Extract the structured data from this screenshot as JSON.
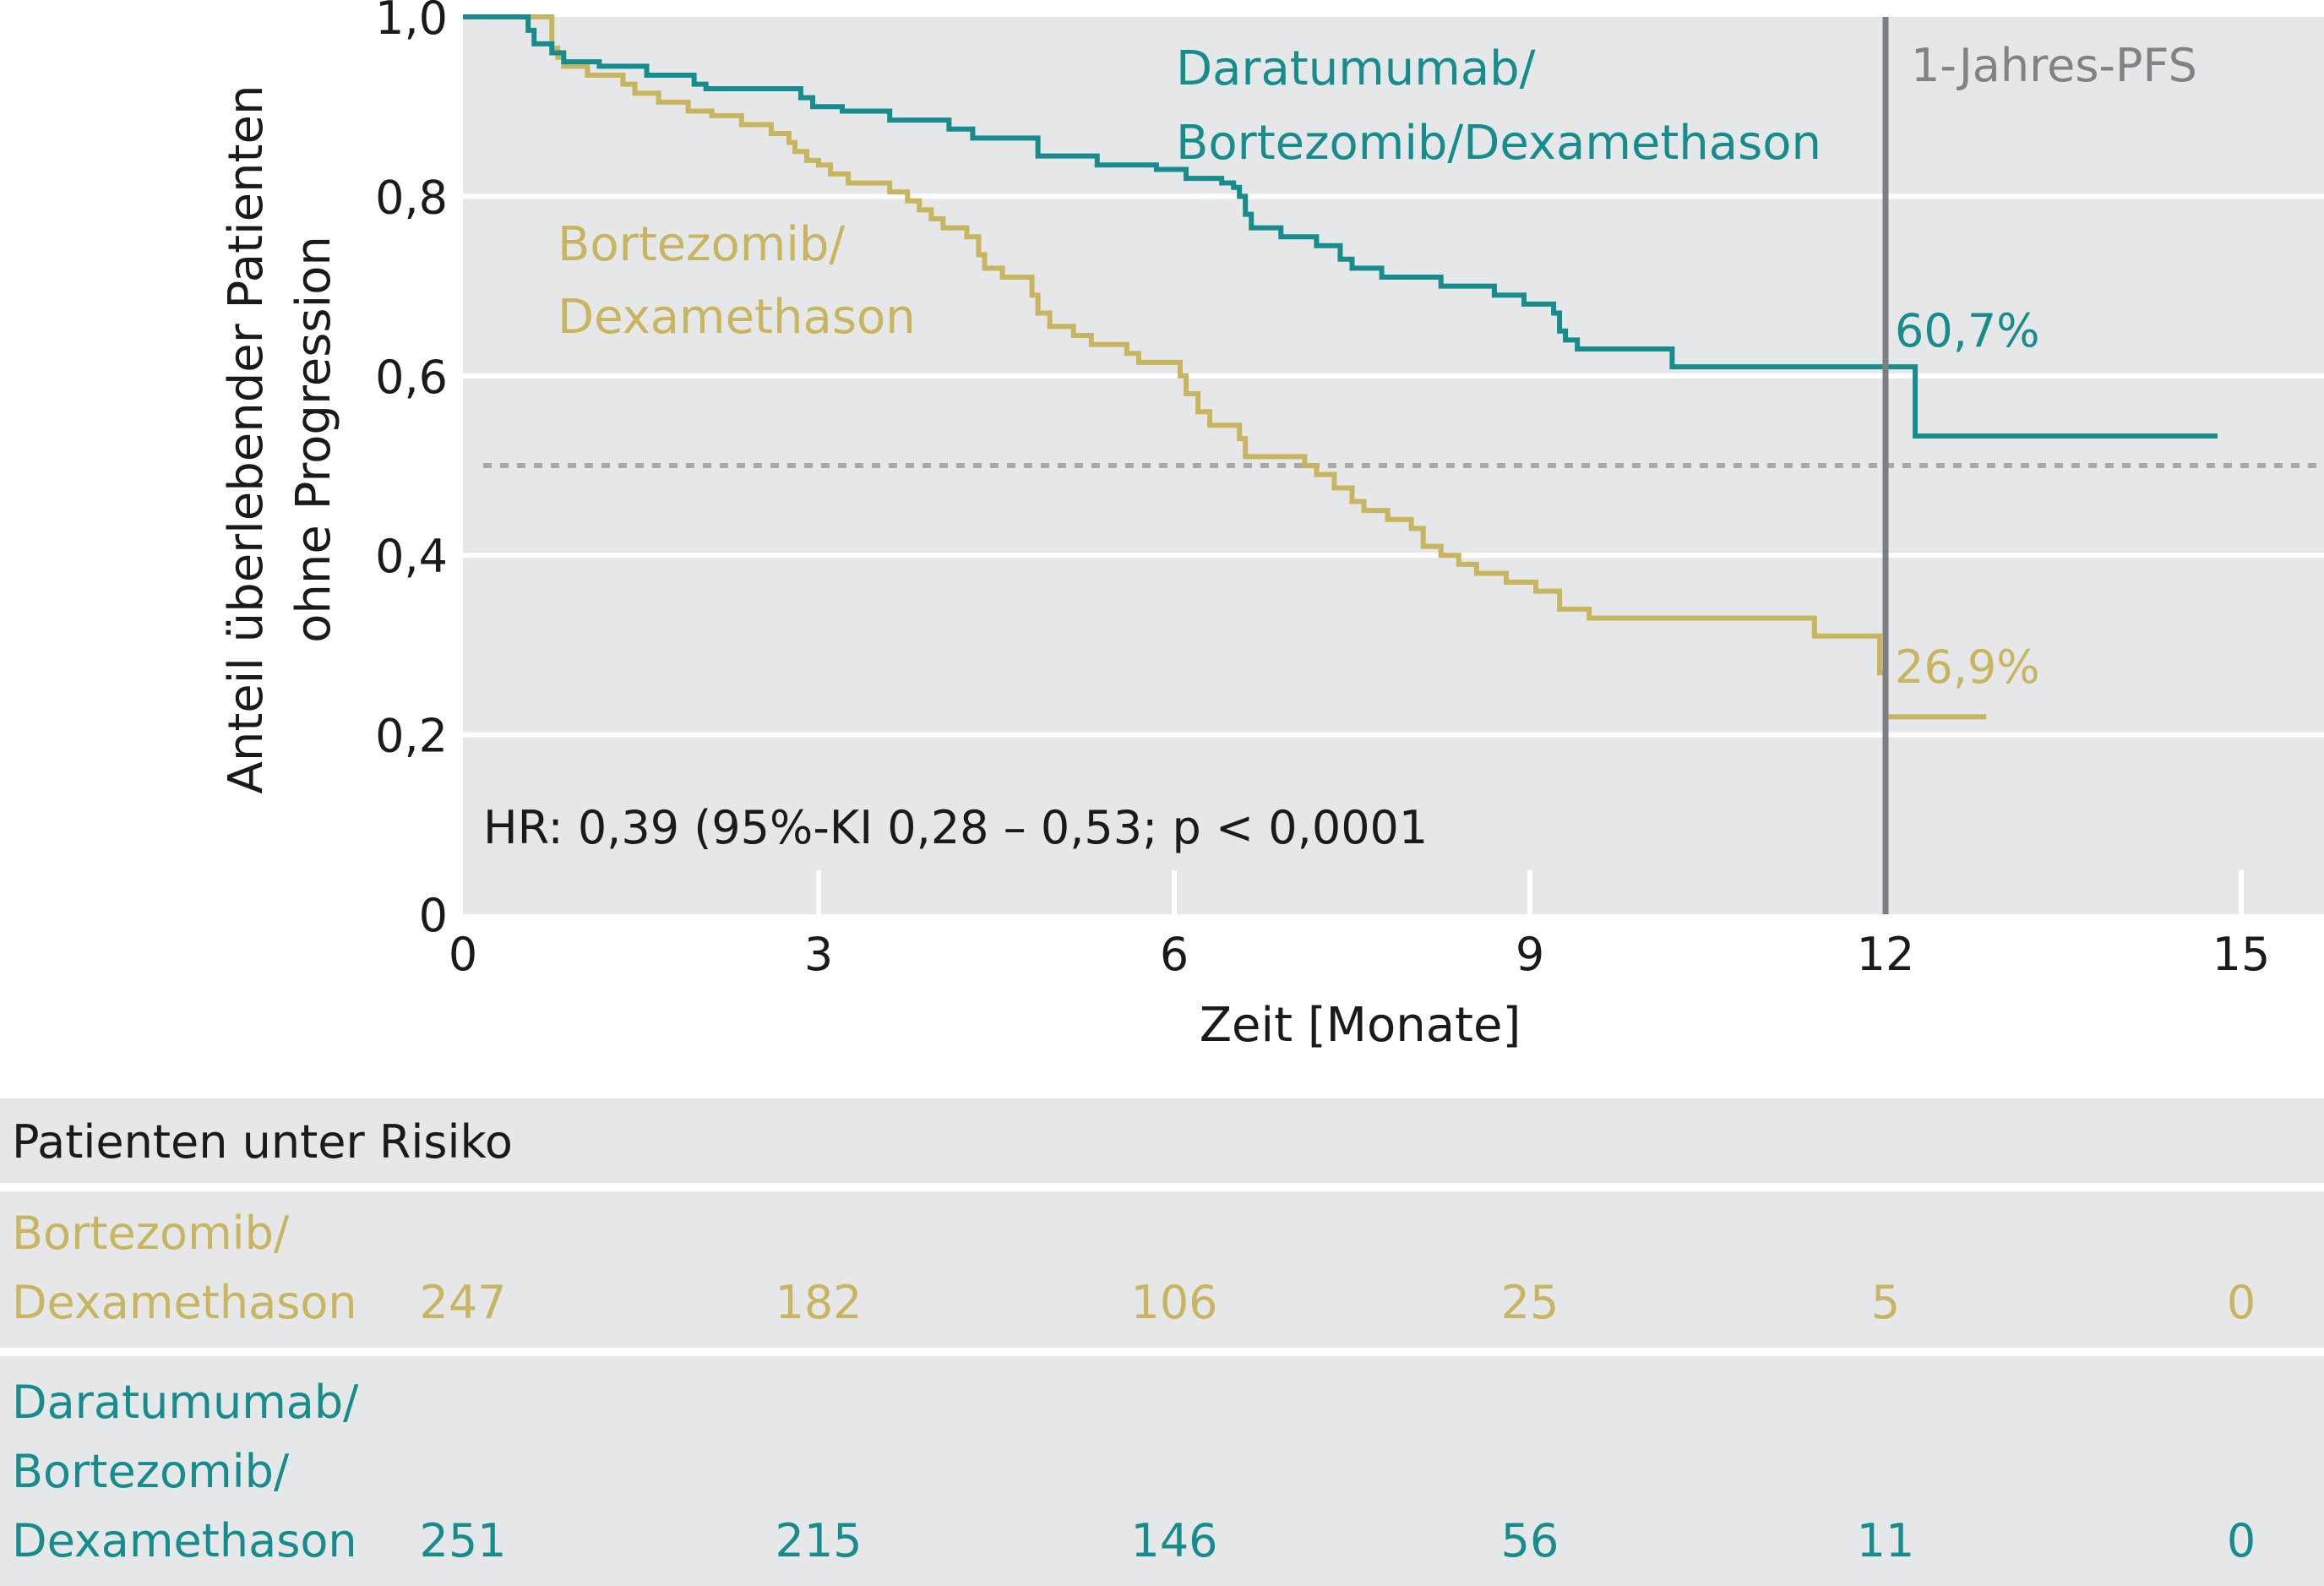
{
  "chart_data": {
    "type": "line",
    "step": true,
    "xlabel": "Zeit [Monate]",
    "ylabel_lines": [
      "Anteil überlebender Patienten",
      "ohne Progression"
    ],
    "xlim": [
      0,
      15
    ],
    "ylim": [
      0,
      1.0
    ],
    "x_ticks": [
      0,
      3,
      6,
      9,
      12,
      15
    ],
    "y_ticks": [
      0,
      0.2,
      0.4,
      0.6,
      0.8,
      1.0
    ],
    "x_tick_labels": [
      "0",
      "3",
      "6",
      "9",
      "12",
      "15"
    ],
    "y_tick_labels": [
      "0",
      "0,2",
      "0,4",
      "0,6",
      "0,8",
      "1,0"
    ],
    "grid": "horizontal",
    "reference_line_y": 0.5,
    "vertical_marker": {
      "x": 12,
      "label": "1-Jahres-PFS"
    },
    "annotation": "HR: 0,39 (95%-KI  0,28 – 0,53; p < 0,0001",
    "series": [
      {
        "key": "dara",
        "label_lines": [
          "Daratumumab/",
          "Bortezomib/Dexamethason"
        ],
        "color": "#168c8c",
        "end_label": "60,7%",
        "points": [
          [
            0,
            1.0
          ],
          [
            0.55,
            0.985
          ],
          [
            0.6,
            0.97
          ],
          [
            0.75,
            0.96
          ],
          [
            0.85,
            0.95
          ],
          [
            1.15,
            0.945
          ],
          [
            1.55,
            0.935
          ],
          [
            1.95,
            0.925
          ],
          [
            2.05,
            0.92
          ],
          [
            2.85,
            0.91
          ],
          [
            2.95,
            0.9
          ],
          [
            3.2,
            0.895
          ],
          [
            3.6,
            0.885
          ],
          [
            4.1,
            0.875
          ],
          [
            4.3,
            0.865
          ],
          [
            4.3,
            0.865
          ],
          [
            4.85,
            0.845
          ],
          [
            5.35,
            0.835
          ],
          [
            5.85,
            0.83
          ],
          [
            6.1,
            0.82
          ],
          [
            6.4,
            0.815
          ],
          [
            6.5,
            0.81
          ],
          [
            6.55,
            0.8
          ],
          [
            6.6,
            0.78
          ],
          [
            6.65,
            0.765
          ],
          [
            6.9,
            0.755
          ],
          [
            7.2,
            0.745
          ],
          [
            7.4,
            0.73
          ],
          [
            7.5,
            0.72
          ],
          [
            7.75,
            0.71
          ],
          [
            8.25,
            0.7
          ],
          [
            8.7,
            0.69
          ],
          [
            8.95,
            0.68
          ],
          [
            9.2,
            0.67
          ],
          [
            9.25,
            0.65
          ],
          [
            9.3,
            0.64
          ],
          [
            9.4,
            0.63
          ],
          [
            10.2,
            0.61
          ],
          [
            12.25,
            0.533
          ],
          [
            14.8,
            0.533
          ]
        ]
      },
      {
        "key": "bort",
        "label_lines": [
          "Bortezomib/",
          "Dexamethason"
        ],
        "color": "#c8b560",
        "end_label": "26,9%",
        "points": [
          [
            0,
            1.0
          ],
          [
            0.75,
            0.965
          ],
          [
            0.8,
            0.955
          ],
          [
            0.85,
            0.945
          ],
          [
            1.05,
            0.935
          ],
          [
            1.35,
            0.925
          ],
          [
            1.45,
            0.915
          ],
          [
            1.65,
            0.905
          ],
          [
            1.9,
            0.895
          ],
          [
            2.1,
            0.89
          ],
          [
            2.35,
            0.88
          ],
          [
            2.6,
            0.87
          ],
          [
            2.75,
            0.86
          ],
          [
            2.8,
            0.85
          ],
          [
            2.9,
            0.84
          ],
          [
            3.0,
            0.835
          ],
          [
            3.1,
            0.825
          ],
          [
            3.25,
            0.815
          ],
          [
            3.6,
            0.805
          ],
          [
            3.75,
            0.795
          ],
          [
            3.85,
            0.785
          ],
          [
            3.95,
            0.775
          ],
          [
            4.05,
            0.765
          ],
          [
            4.25,
            0.755
          ],
          [
            4.35,
            0.735
          ],
          [
            4.4,
            0.72
          ],
          [
            4.55,
            0.71
          ],
          [
            4.8,
            0.69
          ],
          [
            4.85,
            0.67
          ],
          [
            4.95,
            0.655
          ],
          [
            5.15,
            0.645
          ],
          [
            5.3,
            0.635
          ],
          [
            5.6,
            0.625
          ],
          [
            5.7,
            0.615
          ],
          [
            6.05,
            0.6
          ],
          [
            6.1,
            0.58
          ],
          [
            6.2,
            0.56
          ],
          [
            6.3,
            0.545
          ],
          [
            6.55,
            0.53
          ],
          [
            6.6,
            0.51
          ],
          [
            7.1,
            0.5
          ],
          [
            7.2,
            0.49
          ],
          [
            7.35,
            0.475
          ],
          [
            7.5,
            0.46
          ],
          [
            7.6,
            0.45
          ],
          [
            7.8,
            0.44
          ],
          [
            8.0,
            0.43
          ],
          [
            8.1,
            0.41
          ],
          [
            8.25,
            0.4
          ],
          [
            8.4,
            0.39
          ],
          [
            8.55,
            0.38
          ],
          [
            8.8,
            0.37
          ],
          [
            9.05,
            0.36
          ],
          [
            9.25,
            0.34
          ],
          [
            9.5,
            0.33
          ],
          [
            11.4,
            0.31
          ],
          [
            11.95,
            0.269
          ],
          [
            12.0,
            0.22
          ],
          [
            12.85,
            0.22
          ]
        ]
      }
    ]
  },
  "risk_table": {
    "title": "Patienten unter Risiko",
    "rows": [
      {
        "label": "Bortezomib/\nDexamethason",
        "color": "#c8b560",
        "counts": [
          "247",
          "182",
          "106",
          "25",
          "5",
          "0"
        ]
      },
      {
        "label": "Daratumumab/\nBortezomib/\nDexamethason",
        "color": "#168c8c",
        "counts": [
          "251",
          "215",
          "146",
          "56",
          "11",
          "0"
        ]
      }
    ]
  }
}
